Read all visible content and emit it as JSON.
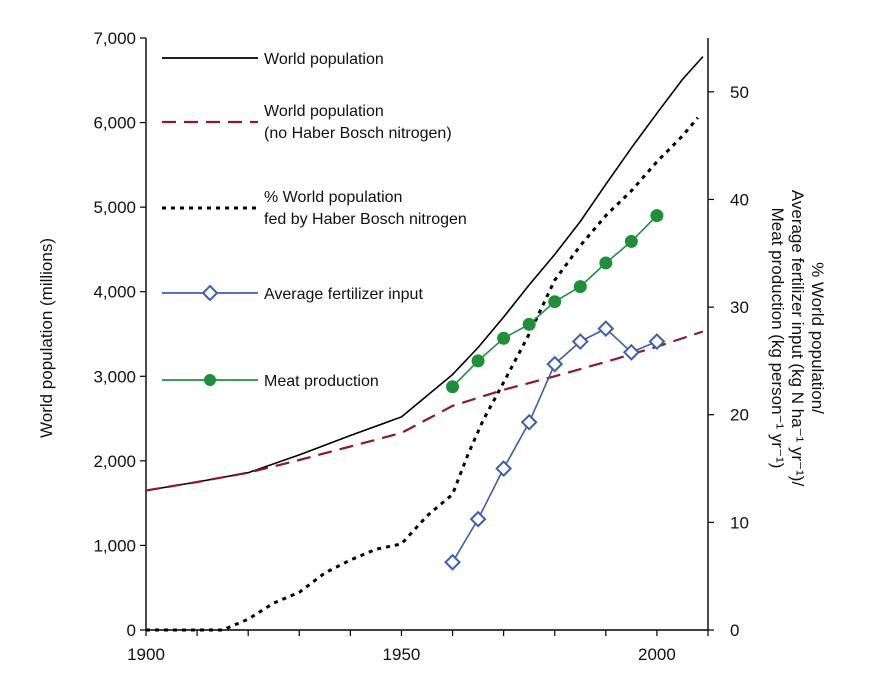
{
  "chart_data": {
    "type": "line",
    "xlim": [
      1900,
      2010
    ],
    "x_ticks": [
      1900,
      1950,
      2000
    ],
    "x_tick_labels": [
      "1900",
      "1950",
      "2000"
    ],
    "y_left": {
      "label": "World population (millions)",
      "ylim": [
        0,
        7000
      ],
      "ticks": [
        0,
        1000,
        2000,
        3000,
        4000,
        5000,
        6000,
        7000
      ],
      "tick_labels": [
        "0",
        "1,000",
        "2,000",
        "3,000",
        "4,000",
        "5,000",
        "6,000",
        "7,000"
      ]
    },
    "y_right": {
      "label_lines": [
        "% World population/",
        "Average fertilizer input (kg N ha⁻¹ yr⁻¹)/",
        "Meat production (kg person⁻¹ yr⁻¹)"
      ],
      "ylim": [
        0,
        55
      ],
      "ticks": [
        0,
        10,
        20,
        30,
        40,
        50
      ],
      "tick_labels": [
        "0",
        "10",
        "20",
        "30",
        "40",
        "50"
      ]
    },
    "grid": false,
    "legend_position": "top-left",
    "series": [
      {
        "name": "World population",
        "axis": "left",
        "style": "solid",
        "color": "#000000",
        "marker": "none",
        "x": [
          1900,
          1910,
          1920,
          1930,
          1940,
          1950,
          1955,
          1960,
          1965,
          1970,
          1975,
          1980,
          1985,
          1990,
          1995,
          2000,
          2005,
          2009
        ],
        "y": [
          1650,
          1750,
          1860,
          2070,
          2300,
          2520,
          2770,
          3020,
          3340,
          3700,
          4080,
          4440,
          4830,
          5270,
          5700,
          6110,
          6510,
          6780
        ]
      },
      {
        "name": "World population\n(no Haber Bosch nitrogen)",
        "legend_lines": [
          "World population",
          "(no Haber Bosch nitrogen)"
        ],
        "axis": "left",
        "style": "dashed",
        "color": "#8b1a2b",
        "marker": "none",
        "x": [
          1900,
          1910,
          1920,
          1930,
          1940,
          1950,
          1955,
          1960,
          1970,
          1980,
          1990,
          2000,
          2009
        ],
        "y": [
          1650,
          1750,
          1860,
          2010,
          2170,
          2330,
          2490,
          2650,
          2840,
          3000,
          3170,
          3350,
          3530
        ]
      },
      {
        "name": "% World population\nfed by Haber Bosch nitrogen",
        "legend_lines": [
          "% World population",
          "fed by Haber Bosch nitrogen"
        ],
        "axis": "right",
        "style": "dotted",
        "color": "#000000",
        "marker": "none",
        "x": [
          1900,
          1915,
          1920,
          1925,
          1930,
          1935,
          1940,
          1945,
          1950,
          1955,
          1960,
          1963,
          1966,
          1970,
          1975,
          1980,
          1985,
          1990,
          1995,
          2000,
          2005,
          2008
        ],
        "y": [
          0,
          0,
          1,
          2.5,
          3.5,
          5.3,
          6.5,
          7.5,
          8,
          10.6,
          12.6,
          16.3,
          19.5,
          23,
          27.5,
          32.5,
          35.7,
          38.5,
          40.8,
          43.5,
          45.9,
          47.6
        ]
      },
      {
        "name": "Average fertilizer input",
        "axis": "right",
        "style": "solid",
        "color": "#3c5fae",
        "marker": "open-diamond",
        "x": [
          1960,
          1965,
          1970,
          1975,
          1980,
          1985,
          1990,
          1995,
          2000
        ],
        "y": [
          6.3,
          10.3,
          15,
          19.3,
          24.7,
          26.8,
          28,
          25.8,
          26.8
        ]
      },
      {
        "name": "Meat production",
        "axis": "right",
        "style": "solid",
        "color": "#1f8f3a",
        "marker": "filled-circle",
        "x": [
          1960,
          1965,
          1970,
          1975,
          1980,
          1985,
          1990,
          1995,
          2000
        ],
        "y": [
          22.6,
          25,
          27.1,
          28.4,
          30.5,
          31.9,
          34.1,
          36.1,
          38.5
        ]
      }
    ]
  }
}
